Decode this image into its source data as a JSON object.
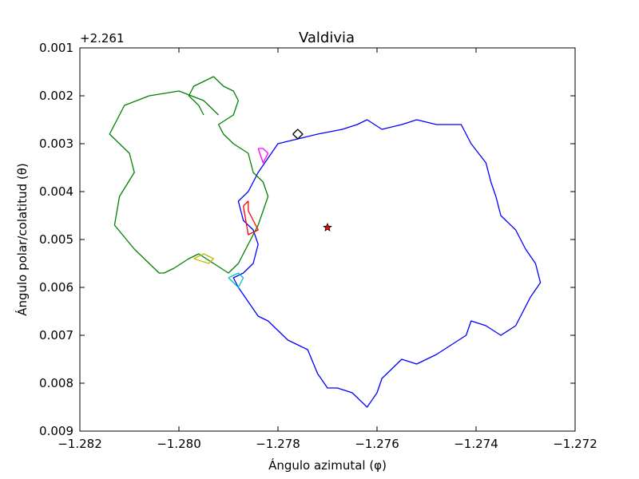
{
  "chart_data": {
    "type": "line",
    "title": "Valdivia",
    "xlabel": "Ángulo azimutal (φ)",
    "ylabel": "Ángulo polar/colatitud (θ)",
    "y_offset_label": "+2.261",
    "xlim": [
      -1.282,
      -1.272
    ],
    "ylim": [
      0.001,
      0.009
    ],
    "y_inverted": true,
    "grid": false,
    "x_ticks": [
      -1.282,
      -1.28,
      -1.278,
      -1.276,
      -1.274,
      -1.272
    ],
    "x_tick_labels": [
      "−1.282",
      "−1.280",
      "−1.278",
      "−1.276",
      "−1.274",
      "−1.272"
    ],
    "y_ticks": [
      0.001,
      0.002,
      0.003,
      0.004,
      0.005,
      0.006,
      0.007,
      0.008,
      0.009
    ],
    "y_tick_labels": [
      "0.001",
      "0.002",
      "0.003",
      "0.004",
      "0.005",
      "0.006",
      "0.007",
      "0.008",
      "0.009"
    ],
    "series": [
      {
        "color": "#0000ff",
        "x": [
          -1.2782,
          -1.278,
          -1.2776,
          -1.2772,
          -1.2767,
          -1.2764,
          -1.2762,
          -1.2759,
          -1.2755,
          -1.2752,
          -1.2748,
          -1.2743,
          -1.2741,
          -1.2738,
          -1.2737,
          -1.2736,
          -1.2735,
          -1.2732,
          -1.273,
          -1.2728,
          -1.2727,
          -1.2729,
          -1.2732,
          -1.2735,
          -1.2738,
          -1.2741,
          -1.2742,
          -1.2745,
          -1.2748,
          -1.275,
          -1.2752,
          -1.2755,
          -1.2757,
          -1.2759,
          -1.276,
          -1.2762,
          -1.2765,
          -1.2768,
          -1.277,
          -1.2772,
          -1.2774,
          -1.2776,
          -1.2778,
          -1.278,
          -1.2782,
          -1.2784,
          -1.2786,
          -1.2788,
          -1.2789,
          -1.2787,
          -1.2785,
          -1.2784,
          -1.2785,
          -1.2787,
          -1.2788,
          -1.2786,
          -1.2784,
          -1.2782
        ],
        "y": [
          0.0033,
          0.003,
          0.0029,
          0.0028,
          0.0027,
          0.0026,
          0.0025,
          0.0027,
          0.0026,
          0.0025,
          0.0026,
          0.0026,
          0.003,
          0.0034,
          0.0038,
          0.0041,
          0.0045,
          0.0048,
          0.0052,
          0.0055,
          0.0059,
          0.0062,
          0.0068,
          0.007,
          0.0068,
          0.0067,
          0.007,
          0.0072,
          0.0074,
          0.0075,
          0.0076,
          0.0075,
          0.0077,
          0.0079,
          0.0082,
          0.0085,
          0.0082,
          0.0081,
          0.0081,
          0.0078,
          0.0073,
          0.0072,
          0.0071,
          0.0069,
          0.0067,
          0.0066,
          0.0063,
          0.006,
          0.0058,
          0.0057,
          0.0055,
          0.0051,
          0.0048,
          0.0046,
          0.0042,
          0.004,
          0.0036,
          0.0033
        ]
      },
      {
        "color": "#008000",
        "x": [
          -1.2792,
          -1.2795,
          -1.28,
          -1.2806,
          -1.2811,
          -1.2814,
          -1.281,
          -1.2809,
          -1.2812,
          -1.2813,
          -1.2809,
          -1.2806,
          -1.2804,
          -1.2803,
          -1.2801,
          -1.2798,
          -1.2796,
          -1.2793,
          -1.279,
          -1.2788,
          -1.2786,
          -1.2784,
          -1.2783,
          -1.2782,
          -1.2783,
          -1.2785,
          -1.2786,
          -1.2789,
          -1.2791,
          -1.2792,
          -1.2789,
          -1.2788,
          -1.2789,
          -1.2791,
          -1.2793,
          -1.2795,
          -1.2797,
          -1.2798,
          -1.2796,
          -1.2795
        ],
        "y": [
          0.0024,
          0.0021,
          0.0019,
          0.002,
          0.0022,
          0.0028,
          0.0032,
          0.0036,
          0.0041,
          0.0047,
          0.0052,
          0.0055,
          0.0057,
          0.0057,
          0.0056,
          0.0054,
          0.0053,
          0.0055,
          0.0057,
          0.0055,
          0.0051,
          0.0047,
          0.0044,
          0.0041,
          0.0038,
          0.0036,
          0.0032,
          0.003,
          0.0028,
          0.0026,
          0.0024,
          0.0021,
          0.0019,
          0.0018,
          0.0016,
          0.0017,
          0.0018,
          0.002,
          0.0022,
          0.0024
        ]
      },
      {
        "color": "#ff0000",
        "x": [
          -1.2787,
          -1.2786,
          -1.2786,
          -1.2785,
          -1.2784,
          -1.2786,
          -1.2787
        ],
        "y": [
          0.0043,
          0.0042,
          0.0044,
          0.0046,
          0.0048,
          0.0049,
          0.0043
        ]
      },
      {
        "color": "#ff00ff",
        "x": [
          -1.2784,
          -1.2783,
          -1.2782,
          -1.2783,
          -1.2784
        ],
        "y": [
          0.0031,
          0.0031,
          0.0032,
          0.0034,
          0.0031
        ]
      },
      {
        "color": "#00bfbf",
        "x": [
          -1.279,
          -1.2788,
          -1.2787,
          -1.2788,
          -1.279
        ],
        "y": [
          0.0058,
          0.0057,
          0.0058,
          0.006,
          0.0058
        ]
      },
      {
        "color": "#bfbf00",
        "x": [
          -1.2797,
          -1.2795,
          -1.2793,
          -1.2794,
          -1.2797
        ],
        "y": [
          0.0054,
          0.0053,
          0.0054,
          0.0055,
          0.0054
        ]
      },
      {
        "color": "#000000",
        "x": [
          -1.2777,
          -1.2776,
          -1.2775,
          -1.2776,
          -1.2777
        ],
        "y": [
          0.0028,
          0.0027,
          0.0028,
          0.0029,
          0.0028
        ]
      }
    ],
    "marker": {
      "x": -1.277,
      "y": 0.00475,
      "color": "#ff0000",
      "shape": "star"
    }
  }
}
